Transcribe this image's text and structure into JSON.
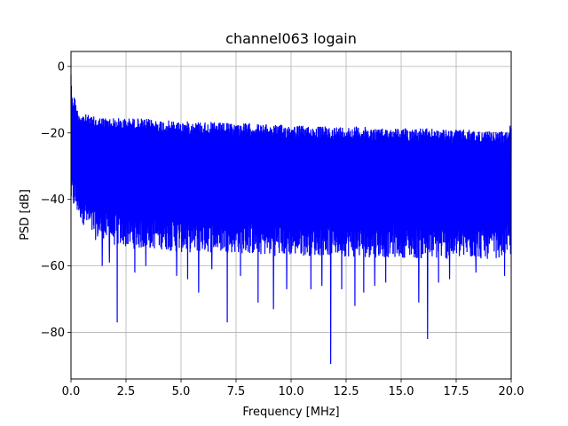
{
  "chart_data": {
    "type": "line",
    "title": "channel063 logain",
    "xlabel": "Frequency [MHz]",
    "ylabel": "PSD [dB]",
    "xlim": [
      0,
      20
    ],
    "ylim": [
      -94,
      4.5
    ],
    "grid": true,
    "xticks": [
      0,
      2.5,
      5,
      7.5,
      10,
      12.5,
      15,
      17.5,
      20
    ],
    "xtick_labels": [
      "0.0",
      "2.5",
      "5.0",
      "7.5",
      "10.0",
      "12.5",
      "15.0",
      "17.5",
      "20.0"
    ],
    "yticks": [
      0,
      -20,
      -40,
      -60,
      -80
    ],
    "ytick_labels": [
      "0",
      "−20",
      "−40",
      "−60",
      "−80"
    ],
    "series": [
      {
        "color": "#0000ff",
        "upper_envelope": {
          "x": [
            0,
            0.05,
            0.15,
            0.3,
            0.5,
            1,
            2,
            3,
            4,
            5,
            6,
            7,
            8,
            9,
            10,
            11,
            12,
            13,
            14,
            15,
            16,
            17,
            18,
            19,
            19.9,
            20
          ],
          "y": [
            0,
            -9,
            -8.5,
            -13,
            -14,
            -15,
            -15.5,
            -15.5,
            -16,
            -16.5,
            -16.5,
            -17,
            -17,
            -17.5,
            -17.5,
            -18,
            -18,
            -18,
            -18.5,
            -18.5,
            -18.5,
            -19,
            -19,
            -19.5,
            -19.5,
            -15
          ]
        },
        "lower_envelope": {
          "x": [
            0,
            1,
            2,
            3,
            4,
            5,
            6,
            7,
            8,
            9,
            10,
            11,
            12,
            13,
            14,
            15,
            16,
            17,
            18,
            19,
            20
          ],
          "y": [
            -42,
            -52,
            -54,
            -55,
            -55,
            -56,
            -56,
            -56,
            -56.5,
            -57,
            -57,
            -57,
            -57,
            -57.5,
            -57.5,
            -57.5,
            -58,
            -58,
            -58,
            -58,
            -57
          ]
        },
        "spikes": [
          {
            "x": 1.42,
            "y": -60
          },
          {
            "x": 1.75,
            "y": -59
          },
          {
            "x": 2.1,
            "y": -77
          },
          {
            "x": 2.9,
            "y": -62
          },
          {
            "x": 3.4,
            "y": -60
          },
          {
            "x": 4.8,
            "y": -63
          },
          {
            "x": 5.3,
            "y": -64
          },
          {
            "x": 5.8,
            "y": -68
          },
          {
            "x": 6.4,
            "y": -61
          },
          {
            "x": 7.1,
            "y": -77
          },
          {
            "x": 7.7,
            "y": -63
          },
          {
            "x": 8.5,
            "y": -71
          },
          {
            "x": 9.2,
            "y": -73
          },
          {
            "x": 9.8,
            "y": -67
          },
          {
            "x": 10.9,
            "y": -67
          },
          {
            "x": 11.4,
            "y": -66
          },
          {
            "x": 11.8,
            "y": -89.5
          },
          {
            "x": 12.3,
            "y": -67
          },
          {
            "x": 12.9,
            "y": -72
          },
          {
            "x": 13.3,
            "y": -68
          },
          {
            "x": 13.8,
            "y": -66
          },
          {
            "x": 14.3,
            "y": -65
          },
          {
            "x": 15.8,
            "y": -71
          },
          {
            "x": 16.2,
            "y": -82
          },
          {
            "x": 16.7,
            "y": -65
          },
          {
            "x": 17.2,
            "y": -64
          },
          {
            "x": 18.4,
            "y": -62
          },
          {
            "x": 19.7,
            "y": -63
          }
        ]
      }
    ]
  }
}
